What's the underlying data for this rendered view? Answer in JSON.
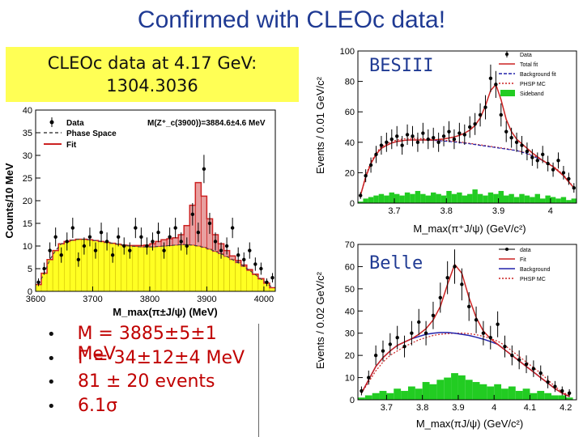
{
  "slide": {
    "title": "Confirmed with CLEOc data!"
  },
  "cleo_box": {
    "line1": "CLEOc data at 4.17 GeV:",
    "line2": "1304.3036"
  },
  "bullets": [
    {
      "text": "M = 3885±5±1 MeV"
    },
    {
      "text": "Γ = 34±12±4 MeV"
    },
    {
      "text": "81 ± 20 events"
    },
    {
      "text": "6.1σ"
    }
  ],
  "chart_data": [
    {
      "id": "cleo",
      "type": "bar",
      "title": "",
      "annotation": "M(Z⁺_c(3900))=3884.6±4.6 MeV",
      "xlabel": "M_max(π±J/ψ) (MeV)",
      "ylabel": "Counts/10 MeV",
      "xlim": [
        3600,
        4020
      ],
      "ylim": [
        0,
        40
      ],
      "xticks": [
        3600,
        3700,
        3800,
        3900,
        4000
      ],
      "yticks": [
        0,
        5,
        10,
        15,
        20,
        25,
        30,
        35,
        40
      ],
      "legend": [
        {
          "label": "Data",
          "style": "points",
          "color": "#000000"
        },
        {
          "label": "Phase Space",
          "style": "dashed",
          "color": "#444444"
        },
        {
          "label": "Fit",
          "style": "line",
          "color": "#cc2222"
        }
      ],
      "x": [
        3605,
        3615,
        3625,
        3635,
        3645,
        3655,
        3665,
        3675,
        3685,
        3695,
        3705,
        3715,
        3725,
        3735,
        3745,
        3755,
        3765,
        3775,
        3785,
        3795,
        3805,
        3815,
        3825,
        3835,
        3845,
        3855,
        3865,
        3875,
        3885,
        3895,
        3905,
        3915,
        3925,
        3935,
        3945,
        3955,
        3965,
        3975,
        3985,
        3995,
        4005,
        4015
      ],
      "data_values": [
        2,
        5,
        9,
        12,
        8,
        11,
        14,
        7,
        10,
        12,
        9,
        13,
        11,
        8,
        12,
        10,
        9,
        14,
        12,
        10,
        11,
        13,
        9,
        12,
        14,
        11,
        10,
        17,
        13,
        27,
        15,
        11,
        9,
        10,
        14,
        8,
        7,
        9,
        6,
        5,
        2,
        3
      ],
      "phase_space": [
        1.5,
        4,
        7,
        9,
        10.5,
        11,
        11.3,
        11.5,
        11.5,
        11.4,
        11.2,
        11,
        10.8,
        10.6,
        10.4,
        10.2,
        10,
        9.9,
        9.8,
        9.8,
        9.8,
        9.9,
        10,
        10.1,
        10.2,
        10.3,
        10.3,
        10.2,
        10,
        9.7,
        9.3,
        8.8,
        8.3,
        7.7,
        7,
        6.3,
        5.5,
        4.6,
        3.7,
        2.7,
        1.8,
        0.8
      ],
      "fit": [
        1.5,
        4,
        7,
        9,
        10.5,
        11,
        11.3,
        11.5,
        11.5,
        11.4,
        11.2,
        11,
        10.8,
        10.6,
        10.4,
        10.2,
        10.1,
        10.1,
        10.1,
        10.2,
        10.5,
        11,
        11.4,
        11.6,
        11.8,
        12.5,
        14.5,
        19,
        24,
        21,
        16,
        12.5,
        10.5,
        9,
        7.8,
        6.8,
        5.8,
        4.8,
        3.8,
        2.8,
        1.8,
        0.8
      ]
    },
    {
      "id": "besiii",
      "type": "line",
      "label": "BESIII",
      "xlabel": "M_max(π⁺J/ψ) (GeV/c²)",
      "ylabel": "Events / 0.01 GeV/c²",
      "xlim": [
        3.63,
        4.05
      ],
      "ylim": [
        0,
        100
      ],
      "xticks": [
        3.7,
        3.8,
        3.9,
        4.0
      ],
      "yticks": [
        0,
        20,
        40,
        60,
        80,
        100
      ],
      "legend": [
        {
          "label": "Data",
          "style": "points",
          "color": "#000000"
        },
        {
          "label": "Total fit",
          "style": "line",
          "color": "#cc2222"
        },
        {
          "label": "Background fit",
          "style": "dashed",
          "color": "#2222aa"
        },
        {
          "label": "PHSP MC",
          "style": "dotted",
          "color": "#cc2222"
        },
        {
          "label": "Sideband",
          "style": "fill",
          "color": "#22cc22"
        }
      ],
      "x": [
        3.635,
        3.645,
        3.655,
        3.665,
        3.675,
        3.685,
        3.695,
        3.705,
        3.715,
        3.725,
        3.735,
        3.745,
        3.755,
        3.765,
        3.775,
        3.785,
        3.795,
        3.805,
        3.815,
        3.825,
        3.835,
        3.845,
        3.855,
        3.865,
        3.875,
        3.885,
        3.895,
        3.905,
        3.915,
        3.925,
        3.935,
        3.945,
        3.955,
        3.965,
        3.975,
        3.985,
        3.995,
        4.005,
        4.015,
        4.025,
        4.035,
        4.045
      ],
      "data_values": [
        5,
        18,
        25,
        32,
        38,
        40,
        42,
        44,
        38,
        45,
        44,
        40,
        46,
        42,
        43,
        40,
        44,
        47,
        42,
        46,
        45,
        50,
        52,
        58,
        63,
        82,
        78,
        58,
        47,
        43,
        40,
        38,
        34,
        30,
        28,
        32,
        26,
        22,
        28,
        20,
        16,
        10
      ],
      "total_fit": [
        5,
        17,
        26,
        32,
        36,
        38,
        39.5,
        40.5,
        41,
        41.5,
        41.5,
        41.5,
        41.5,
        41.5,
        41.5,
        41.8,
        42.2,
        42.8,
        43.5,
        44.5,
        46,
        48,
        51,
        56,
        64,
        74,
        78,
        68,
        55,
        47,
        42,
        39,
        36,
        33,
        30.5,
        28,
        26,
        24,
        21,
        18,
        14,
        10
      ],
      "background_fit": [
        5,
        17,
        26,
        32,
        36,
        38,
        39.5,
        40.5,
        41,
        41.5,
        41.5,
        41.5,
        41.5,
        41.5,
        41.2,
        41,
        40.8,
        40.5,
        40.2,
        39.8,
        39.4,
        39,
        38.5,
        38,
        37.5,
        37,
        36.5,
        36,
        35.5,
        35,
        34.5,
        33.5,
        32.5,
        31,
        29.5,
        28,
        26,
        24,
        21,
        18,
        14,
        10
      ],
      "phsp_mc": [
        5,
        18,
        27,
        33,
        37,
        39,
        40.5,
        41.5,
        42,
        42.5,
        42.5,
        42.5,
        42.3,
        42,
        41.8,
        41.5,
        41.2,
        41,
        40.6,
        40.2,
        39.8,
        39.3,
        38.8,
        38.3,
        37.8,
        37.3,
        36.8,
        36.3,
        35.8,
        35.2,
        34.6,
        33.8,
        32.8,
        31.5,
        30,
        28.2,
        26.3,
        24.2,
        21.6,
        18.5,
        14.5,
        10
      ],
      "sideband": [
        1,
        3,
        4,
        5,
        6,
        5,
        7,
        6,
        5,
        7,
        6,
        8,
        6,
        5,
        7,
        6,
        5,
        8,
        6,
        7,
        5,
        6,
        9,
        6,
        5,
        7,
        6,
        8,
        5,
        6,
        4,
        6,
        5,
        4,
        6,
        3,
        5,
        4,
        3,
        4,
        2,
        3
      ]
    },
    {
      "id": "belle",
      "type": "line",
      "label": "Belle",
      "xlabel": "M_max(πJ/ψ) (GeV/c²)",
      "ylabel": "Events / 0.02 GeV/c²",
      "xlim": [
        3.62,
        4.23
      ],
      "ylim": [
        0,
        70
      ],
      "xticks": [
        3.7,
        3.8,
        3.9,
        4.0,
        4.1,
        4.2
      ],
      "xtick_labels": [
        "3.7",
        "3.8",
        "3.9",
        "4",
        "4.1",
        "4.2"
      ],
      "yticks": [
        0,
        10,
        20,
        30,
        40,
        50,
        60,
        70
      ],
      "legend": [
        {
          "label": "data",
          "style": "points",
          "color": "#000000"
        },
        {
          "label": "Fit",
          "style": "line",
          "color": "#cc2222"
        },
        {
          "label": "Background",
          "style": "line",
          "color": "#2222aa"
        },
        {
          "label": "PHSP MC",
          "style": "dotted",
          "color": "#cc2222"
        }
      ],
      "x": [
        3.63,
        3.65,
        3.67,
        3.69,
        3.71,
        3.73,
        3.75,
        3.77,
        3.79,
        3.81,
        3.83,
        3.85,
        3.87,
        3.89,
        3.91,
        3.93,
        3.95,
        3.97,
        3.99,
        4.01,
        4.03,
        4.05,
        4.07,
        4.09,
        4.11,
        4.13,
        4.15,
        4.17,
        4.19,
        4.21
      ],
      "data_values": [
        4,
        10,
        20,
        22,
        25,
        28,
        24,
        30,
        35,
        30,
        38,
        46,
        55,
        60,
        52,
        42,
        36,
        30,
        28,
        34,
        24,
        20,
        18,
        16,
        14,
        12,
        8,
        6,
        4,
        3
      ],
      "fit": [
        3,
        9,
        15,
        19,
        22,
        24.5,
        26,
        27.5,
        29.5,
        32,
        36,
        42,
        52,
        61,
        57,
        46,
        37,
        31,
        27.5,
        25,
        22.5,
        20,
        17.5,
        15,
        12.5,
        10,
        7.5,
        5,
        3,
        1.5
      ],
      "background": [
        3,
        9,
        15,
        19,
        22,
        24.5,
        26,
        27.5,
        28.5,
        29.5,
        30,
        30.3,
        30.3,
        30,
        29.5,
        29,
        28.2,
        27.3,
        26.2,
        25,
        22.5,
        20,
        17.5,
        15,
        12.5,
        10,
        7.5,
        5,
        3,
        1.5
      ],
      "phsp_mc": [
        3,
        8,
        13,
        17,
        20,
        22,
        24,
        25.5,
        27,
        28,
        29,
        29.5,
        29.8,
        30,
        30,
        29.8,
        29.3,
        28.6,
        27.6,
        26.4,
        24.5,
        22,
        19.5,
        17,
        14.5,
        12,
        9,
        6,
        3.5,
        2
      ],
      "sideband": [
        1,
        2,
        3,
        4,
        3,
        5,
        4,
        6,
        5,
        8,
        7,
        9,
        10,
        12,
        11,
        9,
        8,
        7,
        6,
        7,
        5,
        6,
        4,
        5,
        3,
        4,
        3,
        2,
        2,
        1
      ]
    }
  ]
}
